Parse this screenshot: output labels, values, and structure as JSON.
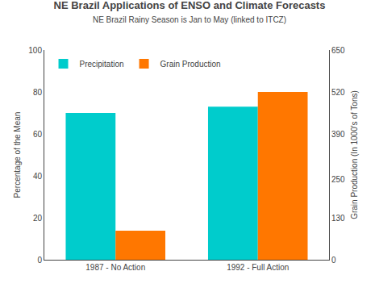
{
  "chart_data": {
    "type": "bar",
    "title": "NE Brazil Applications of ENSO and Climate Forecasts",
    "subtitle": "NE Brazil Rainy Season is Jan to May (linked to ITCZ)",
    "categories": [
      "1987 - No Action",
      "1992 - Full Action"
    ],
    "series": [
      {
        "name": "Precipitation",
        "color": "#00CCCC",
        "values": [
          70,
          73
        ]
      },
      {
        "name": "Grain Production",
        "color": "#FF7700",
        "values": [
          90,
          520
        ],
        "axis": "y2"
      }
    ],
    "ylabel": "Percentage of the Mean",
    "y2label": "Grain Production (In 1000's of Tons)",
    "ylim": [
      0,
      100
    ],
    "yticks": [
      0,
      20,
      40,
      60,
      80,
      100
    ],
    "y2lim": [
      0,
      650
    ],
    "y2ticks": [
      0,
      130,
      250,
      390,
      520,
      650
    ],
    "grid": false,
    "legend": "upper left"
  }
}
